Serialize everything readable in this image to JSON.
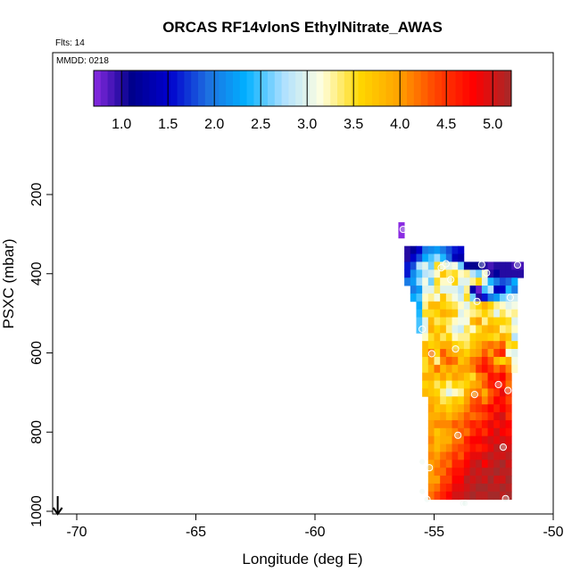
{
  "chart_data": {
    "type": "heatmap",
    "title": "ORCAS RF14vlonS EthylNitrate_AWAS",
    "flights_label": "Flts: 14",
    "date_label": "MMDD: 0218",
    "xlabel": "Longitude (deg E)",
    "ylabel": "PSXC (mbar)",
    "xlim": [
      -71,
      -50
    ],
    "ylim": [
      1000,
      0
    ],
    "x_ticks": [
      -70,
      -65,
      -60,
      -55,
      -50
    ],
    "x_tick_labels": [
      "-70",
      "-65",
      "-60",
      "-55",
      "-50"
    ],
    "y_ticks": [
      200,
      400,
      600,
      800,
      1000
    ],
    "y_tick_labels": [
      "200",
      "400",
      "600",
      "800",
      "1000"
    ],
    "grid": false,
    "colorbar": {
      "location": "top",
      "range": [
        0.7,
        5.2
      ],
      "ticks": [
        1.0,
        1.5,
        2.0,
        2.5,
        3.0,
        3.5,
        4.0,
        4.5,
        5.0
      ],
      "tick_labels": [
        "1.0",
        "1.5",
        "2.0",
        "2.5",
        "3.0",
        "3.5",
        "4.0",
        "4.5",
        "5.0"
      ],
      "colors": [
        "#8a2be2",
        "#00008b",
        "#0000cd",
        "#1e6fe0",
        "#00b0ff",
        "#aee0ff",
        "#ffffe0",
        "#ffd700",
        "#ffa500",
        "#ff4500",
        "#ff0000",
        "#a52a2a"
      ]
    },
    "cell_size": {
      "dlon": 0.25,
      "dp": 20
    },
    "columns": [
      {
        "x": -56.375,
        "p0": 270,
        "values": [
          0.7,
          0.7
        ]
      },
      {
        "x": -56.125,
        "p0": 330,
        "values": [
          1.0,
          1.0,
          1.6,
          1.6,
          2.0
        ]
      },
      {
        "x": -55.875,
        "p0": 330,
        "values": [
          1.2,
          1.5,
          1.8,
          2.1,
          2.2,
          2.0,
          2.3
        ]
      },
      {
        "x": -55.625,
        "p0": 330,
        "values": [
          1.5,
          1.8,
          2.8,
          2.5,
          2.7,
          2.2,
          2.5,
          2.3,
          2.4,
          2.5,
          2.5
        ]
      },
      {
        "x": -55.375,
        "p0": 330,
        "values": [
          2.0,
          2.3,
          3.0,
          2.8,
          3.1,
          3.0,
          3.2,
          3.3,
          3.5,
          3.0,
          3.0,
          3.2,
          3.8,
          3.8,
          3.5,
          3.5,
          3.9,
          3.6,
          3.8
        ]
      },
      {
        "x": -55.125,
        "p0": 330,
        "values": [
          2.1,
          2.5,
          2.6,
          2.9,
          2.6,
          3.0,
          3.3,
          3.8,
          3.5,
          3.8,
          3.9,
          3.5,
          3.6,
          4.2,
          4.0,
          3.8,
          3.9,
          3.7,
          3.7,
          3.9,
          4.0,
          3.9,
          4.0,
          4.0,
          4.1,
          4.0,
          4.1,
          4.0,
          4.0,
          4.0,
          4.1,
          4.2
        ]
      },
      {
        "x": -54.875,
        "p0": 330,
        "values": [
          2.2,
          2.7,
          3.5,
          3.2,
          3.5,
          3.4,
          3.1,
          3.8,
          3.6,
          3.4,
          3.6,
          3.8,
          3.7,
          3.6,
          3.3,
          4.2,
          3.7,
          3.4,
          3.6,
          3.8,
          3.7,
          3.9,
          4.1,
          3.7,
          3.8,
          3.8,
          4.0,
          4.1,
          4.2,
          4.0,
          4.2,
          4.4
        ]
      },
      {
        "x": -54.625,
        "p0": 330,
        "values": [
          2.0,
          2.4,
          3.2,
          3.7,
          3.2,
          3.0,
          3.7,
          3.6,
          3.9,
          3.5,
          3.8,
          3.4,
          3.9,
          4.3,
          4.1,
          3.8,
          4.0,
          3.6,
          3.3,
          3.4,
          3.8,
          4.0,
          4.1,
          3.9,
          3.9,
          4.0,
          4.2,
          4.3,
          4.2,
          4.4,
          4.5,
          4.6
        ]
      },
      {
        "x": -54.375,
        "p0": 330,
        "values": [
          1.8,
          1.9,
          3.0,
          3.4,
          3.2,
          3.0,
          3.3,
          3.5,
          3.8,
          3.4,
          3.3,
          3.6,
          3.9,
          4.0,
          4.3,
          4.0,
          3.7,
          3.3,
          3.0,
          3.5,
          3.6,
          3.8,
          4.1,
          4.0,
          3.9,
          4.1,
          4.3,
          4.2,
          4.5,
          4.4,
          4.6,
          4.8
        ]
      },
      {
        "x": -54.125,
        "p0": 330,
        "values": [
          1.6,
          1.4,
          3.1,
          3.5,
          3.6,
          3.0,
          3.1,
          3.4,
          3.7,
          3.2,
          3.0,
          3.2,
          3.6,
          3.9,
          4.2,
          3.8,
          4.0,
          3.6,
          3.2,
          3.7,
          3.8,
          4.0,
          4.3,
          4.1,
          4.2,
          4.3,
          4.5,
          4.6,
          4.7,
          4.8,
          4.9,
          5.0
        ]
      },
      {
        "x": -53.875,
        "p0": 330,
        "values": [
          1.5,
          1.3,
          2.6,
          3.2,
          3.0,
          2.8,
          2.9,
          3.2,
          3.0,
          3.1,
          2.9,
          3.3,
          3.5,
          3.8,
          3.7,
          4.0,
          3.9,
          3.5,
          3.3,
          3.6,
          3.9,
          4.1,
          4.2,
          4.3,
          4.2,
          4.4,
          4.3,
          4.6,
          4.7,
          4.8,
          4.9,
          5.0
        ]
      },
      {
        "x": -53.625,
        "p0": 370,
        "values": [
          1.2,
          3.3,
          3.0,
          3.3,
          3.5,
          3.0,
          3.2,
          3.1,
          3.4,
          3.3,
          3.4,
          3.6,
          3.9,
          4.0,
          3.7,
          3.6,
          3.9,
          4.0,
          4.1,
          4.3,
          4.4,
          4.2,
          4.6,
          4.5,
          4.7,
          4.8,
          4.9,
          5.1,
          5.0,
          5.1
        ]
      },
      {
        "x": -53.375,
        "p0": 370,
        "values": [
          1.1,
          2.8,
          3.3,
          1.3,
          2.6,
          3.4,
          3.3,
          3.8,
          3.2,
          3.6,
          3.7,
          3.9,
          4.2,
          4.1,
          3.5,
          3.9,
          4.1,
          4.3,
          4.4,
          4.2,
          4.6,
          4.5,
          4.8,
          4.7,
          4.9,
          5.0,
          5.1,
          5.0,
          5.1,
          5.2
        ]
      },
      {
        "x": -53.125,
        "p0": 370,
        "values": [
          1.1,
          2.6,
          3.6,
          0.8,
          1.0,
          3.6,
          3.4,
          4.0,
          3.5,
          3.7,
          3.9,
          4.0,
          4.3,
          4.5,
          4.1,
          4.0,
          4.2,
          4.4,
          4.5,
          4.3,
          4.5,
          4.7,
          4.8,
          4.6,
          4.9,
          5.1,
          5.0,
          5.1,
          5.2,
          5.1
        ]
      },
      {
        "x": -52.875,
        "p0": 370,
        "values": [
          1.0,
          3.2,
          3.0,
          2.5,
          1.6,
          3.9,
          3.6,
          3.3,
          3.8,
          3.7,
          4.1,
          4.3,
          4.6,
          4.7,
          4.2,
          4.3,
          3.9,
          4.1,
          4.6,
          4.4,
          4.7,
          4.5,
          4.9,
          4.7,
          5.0,
          4.8,
          5.1,
          5.0,
          5.2,
          5.1
        ]
      },
      {
        "x": -52.625,
        "p0": 370,
        "values": [
          0.9,
          1.0,
          2.4,
          2.8,
          2.0,
          3.6,
          3.4,
          3.7,
          3.9,
          3.6,
          4.2,
          4.0,
          4.3,
          4.5,
          4.7,
          4.6,
          4.3,
          4.4,
          4.8,
          4.6,
          4.9,
          4.8,
          5.0,
          4.9,
          5.1,
          5.0,
          5.1,
          5.2,
          5.1,
          5.2
        ]
      },
      {
        "x": -52.375,
        "p0": 370,
        "values": [
          1.0,
          1.2,
          2.0,
          1.4,
          2.2,
          3.3,
          3.0,
          3.6,
          3.8,
          3.5,
          4.1,
          4.4,
          3.8,
          4.2,
          4.6,
          4.7,
          4.5,
          4.8,
          4.6,
          4.9,
          4.7,
          5.0,
          4.9,
          5.1,
          5.0,
          5.1,
          5.2,
          5.0,
          5.1,
          5.2
        ]
      },
      {
        "x": -52.125,
        "p0": 370,
        "values": [
          1.0,
          1.0,
          1.8,
          1.5,
          2.6,
          3.2,
          3.4,
          3.6,
          3.3,
          3.9,
          4.3,
          4.6,
          3.6,
          4.4,
          4.8,
          4.6,
          4.9,
          4.7,
          4.8,
          5.0,
          4.9,
          4.8,
          5.0,
          5.1,
          5.0,
          5.2,
          5.1,
          5.0,
          5.2,
          5.1
        ]
      },
      {
        "x": -51.875,
        "p0": 370,
        "values": [
          1.0,
          1.0,
          1.9,
          2.4,
          2.7,
          3.0,
          3.2,
          3.5,
          3.4,
          3.7,
          3.5,
          3.1,
          3.9,
          4.1,
          4.3,
          4.2,
          4.5,
          4.4,
          4.6,
          4.5,
          4.8,
          4.7,
          4.9,
          5.0,
          5.1,
          5.0,
          5.1,
          5.2,
          5.1,
          5.2
        ]
      },
      {
        "x": -51.625,
        "p0": 370,
        "values": [
          0.9,
          1.0,
          2.3,
          2.0,
          2.9,
          3.1,
          3.3,
          3.0,
          3.2,
          2.8,
          3.6,
          3.0,
          3.1,
          3.2
        ]
      },
      {
        "x": -51.375,
        "p0": 370,
        "values": [
          0.9,
          1.0
        ]
      }
    ],
    "points": [
      {
        "x": -56.3,
        "p": 288,
        "value": 3.0
      },
      {
        "x": -54.5,
        "p": 375,
        "value": 3.0
      },
      {
        "x": -54.7,
        "p": 385,
        "value": 3.0
      },
      {
        "x": -54.3,
        "p": 415,
        "value": 3.0
      },
      {
        "x": -53.2,
        "p": 470,
        "value": 3.0
      },
      {
        "x": -53.0,
        "p": 377,
        "value": 3.0
      },
      {
        "x": -52.8,
        "p": 398,
        "value": 3.0
      },
      {
        "x": -51.5,
        "p": 378,
        "value": 3.0
      },
      {
        "x": -51.8,
        "p": 460,
        "value": 3.0
      },
      {
        "x": -55.5,
        "p": 540,
        "value": 3.0
      },
      {
        "x": -54.1,
        "p": 590,
        "value": 3.0
      },
      {
        "x": -55.1,
        "p": 602,
        "value": 3.0
      },
      {
        "x": -52.3,
        "p": 680,
        "value": 3.0
      },
      {
        "x": -53.3,
        "p": 705,
        "value": 3.0
      },
      {
        "x": -51.9,
        "p": 695,
        "value": 3.0
      },
      {
        "x": -54.0,
        "p": 808,
        "value": 3.0
      },
      {
        "x": -52.1,
        "p": 838,
        "value": 3.0
      },
      {
        "x": -55.5,
        "p": 875,
        "value": 3.0
      },
      {
        "x": -55.2,
        "p": 890,
        "value": 3.0
      },
      {
        "x": -55.5,
        "p": 950,
        "value": 3.0
      },
      {
        "x": -55.3,
        "p": 970,
        "value": 3.0
      },
      {
        "x": -53.8,
        "p": 980,
        "value": 3.0
      },
      {
        "x": -53.7,
        "p": 980,
        "value": 3.0
      },
      {
        "x": -52.0,
        "p": 968,
        "value": 3.0
      }
    ],
    "arrow": {
      "x": -70.8,
      "direction": "down"
    }
  }
}
